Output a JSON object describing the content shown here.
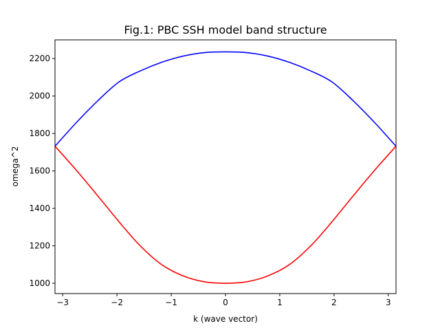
{
  "chart_data": {
    "type": "line",
    "title": "Fig.1: PBC SSH model band structure",
    "xlabel": "k (wave vector)",
    "ylabel": "omega^2",
    "xlim": [
      -3.14159,
      3.14159
    ],
    "ylim": [
      945,
      2300
    ],
    "grid": false,
    "legend": "none",
    "x_ticks": [
      -3,
      -2,
      -1,
      0,
      1,
      2,
      3
    ],
    "x_tick_labels": [
      "−3",
      "−2",
      "−1",
      "0",
      "1",
      "2",
      "3"
    ],
    "y_ticks": [
      1000,
      1200,
      1400,
      1600,
      1800,
      2000,
      2200
    ],
    "y_tick_labels": [
      "1000",
      "1200",
      "1400",
      "1600",
      "1800",
      "2000",
      "2200"
    ],
    "x": [
      -3.1416,
      -2.7489,
      -2.3562,
      -1.9635,
      -1.5708,
      -1.1781,
      -0.7854,
      -0.3927,
      0,
      0.3927,
      0.7854,
      1.1781,
      1.5708,
      1.9635,
      2.3562,
      2.7489,
      3.1416
    ],
    "series": [
      {
        "color": "#0000ff",
        "values": [
          1732,
          1858,
          1974,
          2075,
          2134,
          2180,
          2213,
          2232,
          2236,
          2232,
          2213,
          2180,
          2134,
          2075,
          1974,
          1858,
          1732
        ]
      },
      {
        "color": "#ff0000",
        "values": [
          1732,
          1604,
          1468,
          1329,
          1200,
          1100,
          1040,
          1008,
          1000,
          1008,
          1040,
          1100,
          1200,
          1329,
          1468,
          1604,
          1732
        ]
      }
    ]
  }
}
